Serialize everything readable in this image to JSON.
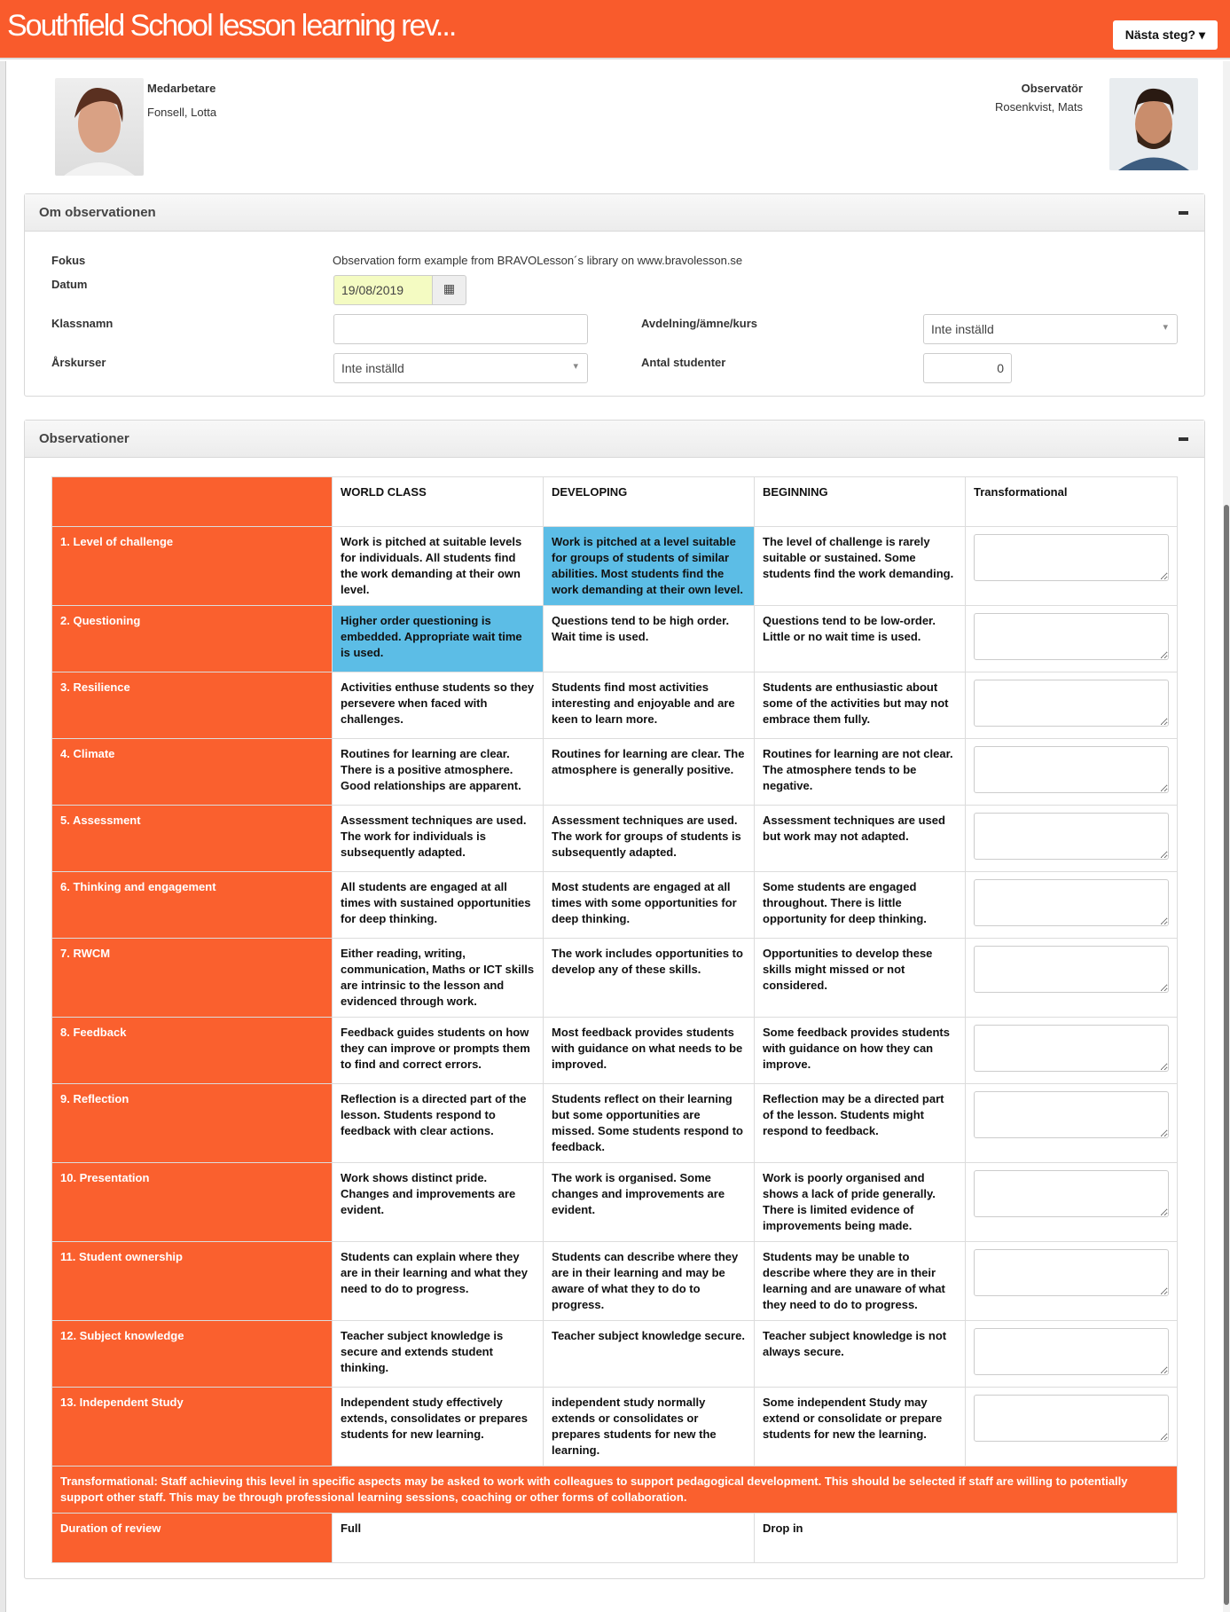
{
  "header": {
    "title": "Southfield School lesson learning rev...",
    "next_button": "Nästa steg? ▾"
  },
  "people": {
    "employee_label": "Medarbetare",
    "employee_name": "Fonsell, Lotta",
    "observer_label": "Observatör",
    "observer_name": "Rosenkvist, Mats"
  },
  "about": {
    "title": "Om observationen",
    "fokus_label": "Fokus",
    "fokus_value": "Observation form example from BRAVOLesson´s library on www.bravolesson.se",
    "datum_label": "Datum",
    "datum_value": "19/08/2019",
    "klassnamn_label": "Klassnamn",
    "klassnamn_value": "",
    "avdelning_label": "Avdelning/ämne/kurs",
    "avdelning_value": "Inte inställd",
    "arskurser_label": "Årskurser",
    "arskurser_value": "Inte inställd",
    "antal_label": "Antal studenter",
    "antal_value": "0"
  },
  "observations": {
    "title": "Observationer",
    "columns": [
      "",
      "WORLD CLASS",
      "DEVELOPING",
      "BEGINNING",
      "Transformational"
    ],
    "highlight_color": "#5cbde6",
    "accent_color": "#fa602e",
    "rows": [
      {
        "label": "1. Level of challenge",
        "cells": [
          "Work is pitched at suitable levels for individuals. All students find the work demanding at their own level.",
          "Work is pitched at a level suitable for groups of students of similar abilities. Most students find the work demanding at their own level.",
          "The level of challenge is rarely suitable or sustained. Some students find the work demanding."
        ],
        "selected": 1
      },
      {
        "label": "2. Questioning",
        "cells": [
          "Higher order questioning is embedded. Appropriate wait time is used.",
          "Questions tend to be high order. Wait time is used.",
          "Questions tend to be low-order. Little or no wait time is used."
        ],
        "selected": 0
      },
      {
        "label": "3. Resilience",
        "cells": [
          "Activities enthuse students so they persevere when faced with challenges.",
          "Students find most activities interesting and enjoyable and are keen to learn more.",
          "Students are enthusiastic about some of the activities but may not embrace them fully."
        ],
        "selected": -1
      },
      {
        "label": "4. Climate",
        "cells": [
          "Routines for learning are clear. There is a positive atmosphere. Good relationships are apparent.",
          "Routines for learning are clear. The atmosphere is generally positive.",
          "Routines for learning are not clear. The atmosphere tends to be negative."
        ],
        "selected": -1
      },
      {
        "label": "5. Assessment",
        "cells": [
          "Assessment techniques are used. The work for individuals is subsequently adapted.",
          "Assessment techniques are used. The work for groups of students is subsequently adapted.",
          "Assessment techniques are used but work may not adapted."
        ],
        "selected": -1
      },
      {
        "label": "6. Thinking and engagement",
        "cells": [
          "All students are engaged at all times with sustained opportunities for deep thinking.",
          "Most students are engaged at all times with some opportunities for deep thinking.",
          "Some students are engaged throughout. There is little opportunity for deep thinking."
        ],
        "selected": -1
      },
      {
        "label": "7. RWCM",
        "cells": [
          "Either reading, writing, communication, Maths or ICT skills are intrinsic to the lesson and evidenced through work.",
          "The work includes opportunities to develop any of these skills.",
          "Opportunities to develop these skills might missed or not considered."
        ],
        "selected": -1
      },
      {
        "label": "8. Feedback",
        "cells": [
          "Feedback guides students on how they can improve or prompts them to find and correct errors.",
          "Most feedback provides students with guidance on what needs to be improved.",
          "Some feedback provides students with guidance on how they can improve."
        ],
        "selected": -1
      },
      {
        "label": "9. Reflection",
        "cells": [
          "Reflection is a directed part of the lesson. Students respond to feedback with clear actions.",
          "Students reflect on their learning but some opportunities are missed. Some students respond to feedback.",
          "Reflection may be a directed part of the lesson. Students might respond to feedback."
        ],
        "selected": -1
      },
      {
        "label": "10. Presentation",
        "cells": [
          "Work shows distinct pride. Changes and improvements are evident.",
          "The work is organised. Some changes and improvements are evident.",
          "Work is poorly organised and shows a lack of pride generally. There is limited evidence of improvements being made."
        ],
        "selected": -1
      },
      {
        "label": "11. Student ownership",
        "cells": [
          "Students can explain where they are in their learning and what they need to do to progress.",
          "Students can describe where they are in their learning and may be aware of what they to do to progress.",
          "Students may be unable to describe where they are in their learning and are unaware of what they need to do to progress."
        ],
        "selected": -1
      },
      {
        "label": "12. Subject knowledge",
        "cells": [
          "Teacher subject knowledge is secure and extends student thinking.",
          "Teacher subject knowledge secure.",
          "Teacher subject knowledge is not always secure."
        ],
        "selected": -1
      },
      {
        "label": "13. Independent Study",
        "cells": [
          "Independent study effectively extends, consolidates or prepares students for new learning.",
          "independent study normally extends or consolidates or prepares students for new the learning.",
          "Some independent Study may extend or consolidate or prepare students for new the learning."
        ],
        "selected": -1
      }
    ],
    "transformational_note": "Transformational: Staff achieving this level in specific aspects may be asked to work with colleagues to support pedagogical development. This should be selected if staff are willing to potentially support other staff. This may be through professional learning sessions, coaching or other forms of collaboration.",
    "duration_label": "Duration of review",
    "duration_options": [
      "Full",
      "Drop in"
    ]
  }
}
